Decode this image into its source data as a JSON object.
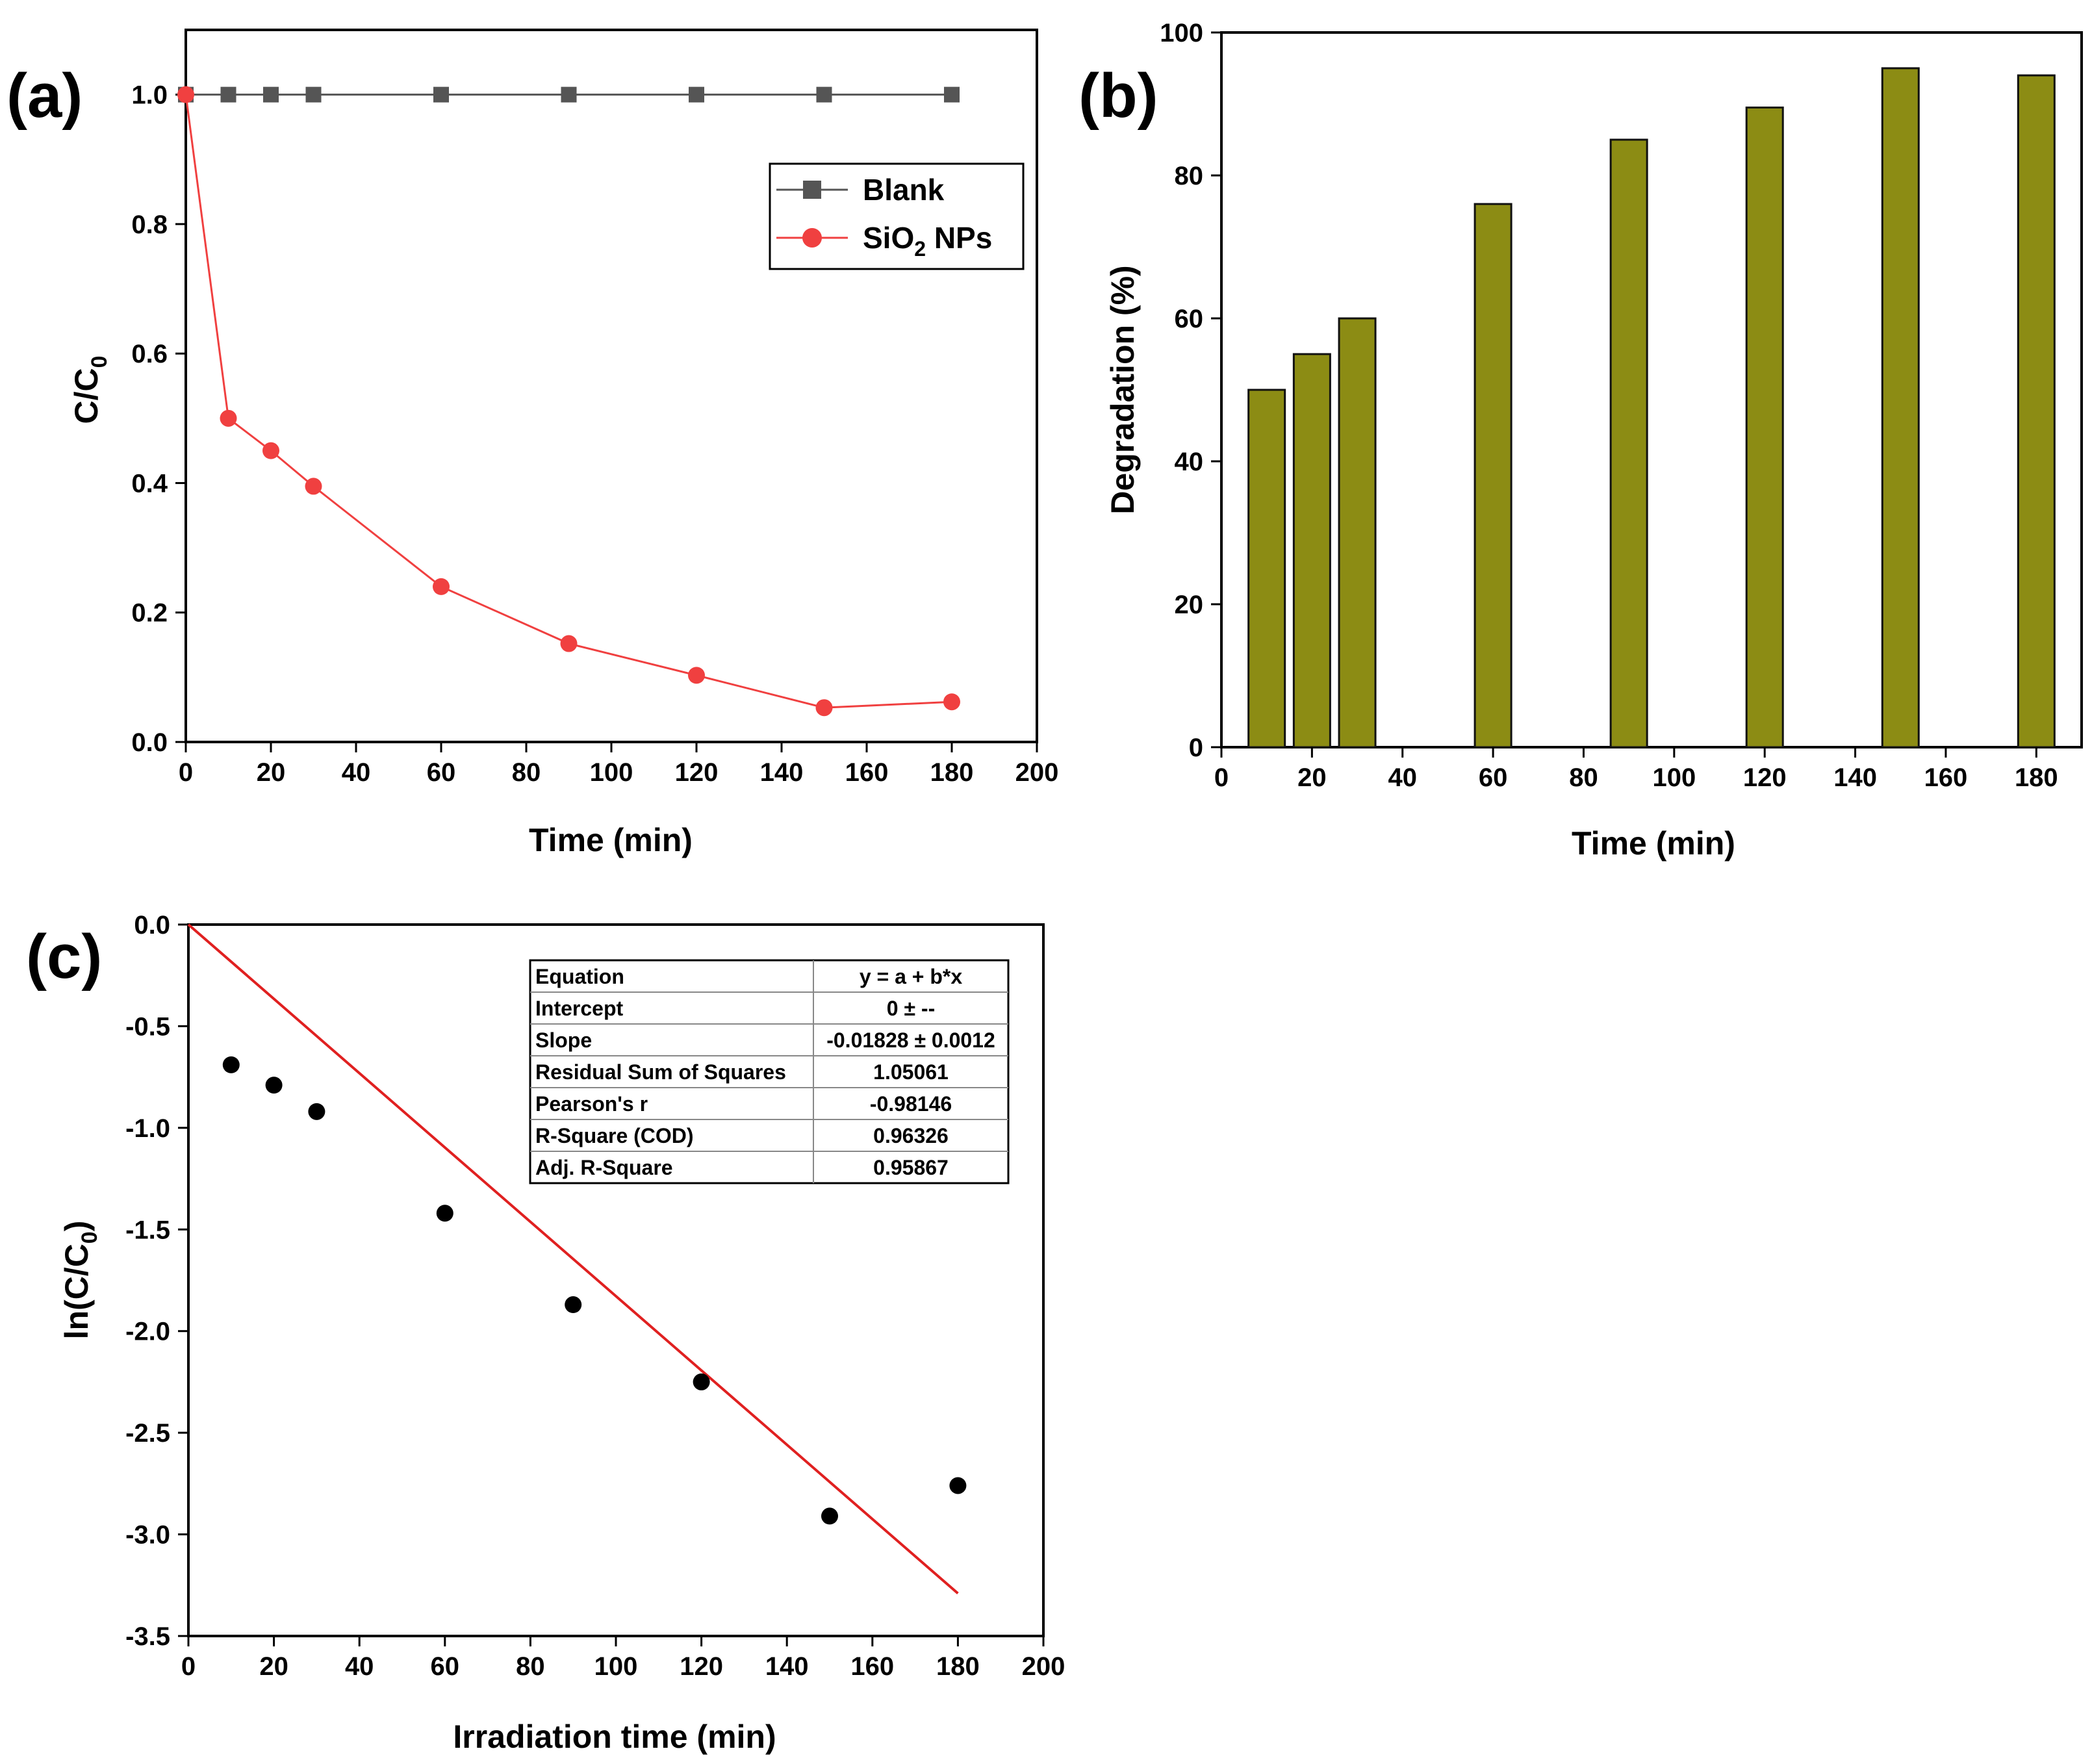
{
  "chart_data": [
    {
      "panel": "(a)",
      "type": "line",
      "xlabel": "Time (min)",
      "ylabel": "C/C0",
      "ylabel_main": "C/C",
      "ylabel_sub": "0",
      "xlim": [
        0,
        200
      ],
      "ylim": [
        0,
        1.1
      ],
      "xticks": [
        0,
        20,
        40,
        60,
        80,
        100,
        120,
        140,
        160,
        180,
        200
      ],
      "yticks": [
        0.0,
        0.2,
        0.4,
        0.6,
        0.8,
        1.0
      ],
      "ytick_labels": [
        "0.0",
        "0.2",
        "0.4",
        "0.6",
        "0.8",
        "1.0"
      ],
      "legend_position": "top-right",
      "series": [
        {
          "name": "Blank",
          "color": "#555555",
          "marker": "square",
          "x": [
            0,
            10,
            20,
            30,
            60,
            90,
            120,
            150,
            180
          ],
          "y": [
            1.0,
            1.0,
            1.0,
            1.0,
            1.0,
            1.0,
            1.0,
            1.0,
            1.0
          ]
        },
        {
          "name": "SiO2 NPs",
          "legend_main": "SiO",
          "legend_sub": "2",
          "legend_tail": " NPs",
          "color": "#f04040",
          "marker": "circle",
          "x": [
            0,
            10,
            20,
            30,
            60,
            90,
            120,
            150,
            180
          ],
          "y": [
            1.0,
            0.5,
            0.45,
            0.395,
            0.24,
            0.152,
            0.103,
            0.053,
            0.062
          ]
        }
      ]
    },
    {
      "panel": "(b)",
      "type": "bar",
      "xlabel": "Time (min)",
      "ylabel": "Degradation (%)",
      "xlim": [
        0,
        190
      ],
      "ylim": [
        0,
        100
      ],
      "xticks": [
        0,
        20,
        40,
        60,
        80,
        100,
        120,
        140,
        160,
        180
      ],
      "yticks": [
        0,
        20,
        40,
        60,
        80,
        100
      ],
      "bar_color": "#8c8c14",
      "x": [
        10,
        20,
        30,
        60,
        90,
        120,
        150,
        180
      ],
      "values": [
        50,
        55,
        60,
        76,
        85,
        89.5,
        95,
        94
      ]
    },
    {
      "panel": "(c)",
      "type": "scatter",
      "xlabel": "Irradiation time (min)",
      "ylabel": "ln(C/C0)",
      "ylabel_main": "ln(C/C",
      "ylabel_sub": "0",
      "ylabel_tail": ")",
      "xlim": [
        0,
        200
      ],
      "ylim": [
        -3.5,
        0
      ],
      "xticks": [
        0,
        20,
        40,
        60,
        80,
        100,
        120,
        140,
        160,
        180,
        200
      ],
      "yticks": [
        0,
        -0.5,
        -1,
        -1.5,
        -2,
        -2.5,
        -3,
        -3.5
      ],
      "ytick_labels": [
        "0.0",
        "-0.5",
        "-1.0",
        "-1.5",
        "-2.0",
        "-2.5",
        "-3.0",
        "-3.5"
      ],
      "points": {
        "color": "#000000",
        "x": [
          10,
          20,
          30,
          60,
          90,
          120,
          150,
          180
        ],
        "y": [
          -0.69,
          -0.79,
          -0.92,
          -1.42,
          -1.87,
          -2.25,
          -2.91,
          -2.76
        ]
      },
      "fit": {
        "color": "#e02020",
        "intercept": 0,
        "slope": -0.01828,
        "x_range": [
          0,
          180
        ]
      },
      "table": [
        [
          "Equation",
          "y = a + b*x"
        ],
        [
          "Intercept",
          "0 ± --"
        ],
        [
          "Slope",
          "-0.01828 ± 0.0012"
        ],
        [
          "Residual Sum of Squares",
          "1.05061"
        ],
        [
          "Pearson's r",
          "-0.98146"
        ],
        [
          "R-Square (COD)",
          "0.96326"
        ],
        [
          "Adj. R-Square",
          "0.95867"
        ]
      ]
    }
  ]
}
